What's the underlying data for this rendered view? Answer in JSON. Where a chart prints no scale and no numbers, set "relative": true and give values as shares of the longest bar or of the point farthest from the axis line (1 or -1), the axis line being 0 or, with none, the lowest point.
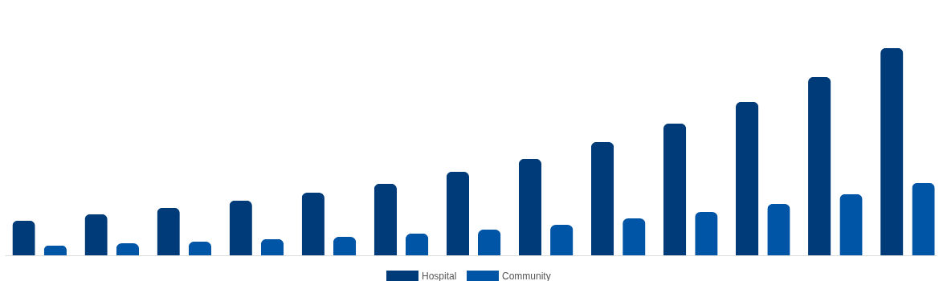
{
  "chart_data": {
    "type": "bar",
    "relative": true,
    "legend": "bottom",
    "categories": [
      null,
      null,
      null,
      null,
      null,
      null,
      null,
      null,
      null,
      null,
      null,
      null,
      null
    ],
    "series": [
      {
        "name": "Hospital",
        "color": "#003b79",
        "values": [
          0.167,
          0.198,
          0.229,
          0.264,
          0.302,
          0.345,
          0.403,
          0.465,
          0.547,
          0.636,
          0.74,
          0.86,
          1
        ]
      },
      {
        "name": "Community",
        "color": "#0055a6",
        "values": [
          0.047,
          0.058,
          0.066,
          0.078,
          0.089,
          0.105,
          0.124,
          0.147,
          0.178,
          0.209,
          0.248,
          0.295,
          0.349
        ]
      }
    ]
  }
}
